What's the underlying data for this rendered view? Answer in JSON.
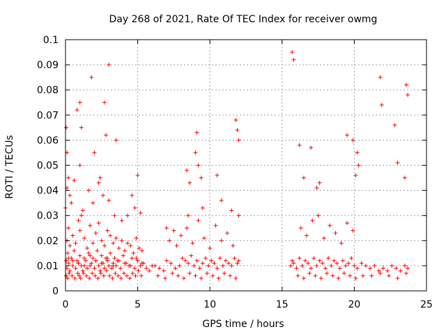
{
  "chart_data": {
    "type": "scatter",
    "title": "Day 268 of 2021, Rate Of TEC Index for receiver owmg",
    "xlabel": "GPS time / hours",
    "ylabel": "ROTI / TECUs",
    "xlim": [
      0,
      25
    ],
    "ylim": [
      0,
      0.1
    ],
    "x_ticks": [
      "0",
      "5",
      "10",
      "15",
      "20",
      "25"
    ],
    "y_ticks": [
      "0",
      "0.01",
      "0.02",
      "0.03",
      "0.04",
      "0.05",
      "0.06",
      "0.07",
      "0.08",
      "0.09",
      "0.1"
    ],
    "grid": true,
    "marker": "+",
    "color": "#ff0000",
    "series": [
      {
        "x": [
          0.05,
          0.1,
          0.15,
          0.2,
          0.3,
          0.4,
          0.5,
          0.6,
          0.7,
          0.8,
          0.9,
          1.0,
          1.1,
          1.2,
          1.3,
          1.4,
          1.5,
          1.6,
          1.7,
          1.8,
          1.9,
          2.0,
          2.1,
          2.2,
          2.3,
          2.4,
          2.5,
          2.6,
          2.7,
          2.8,
          2.9,
          3.0,
          3.1,
          3.2,
          3.3,
          3.4,
          3.5,
          3.6,
          3.8,
          4.0,
          4.2,
          4.4,
          4.6,
          4.8,
          5.0,
          5.2,
          5.4,
          5.6,
          5.8,
          6.0,
          0.1,
          0.2,
          0.3,
          0.5,
          0.7,
          0.9,
          1.0,
          1.1,
          1.3,
          1.5,
          1.7,
          1.9,
          2.1,
          2.3,
          2.5,
          2.7,
          2.9,
          3.1,
          3.3,
          3.5,
          3.7,
          3.9,
          4.1,
          4.3,
          4.5,
          4.7,
          4.9,
          5.1,
          5.3,
          0.05,
          0.15,
          0.25,
          0.45,
          0.65,
          0.85,
          0.95,
          1.05,
          1.25,
          1.45,
          1.65,
          1.85,
          2.05,
          2.25,
          2.45,
          2.65,
          2.85,
          3.05,
          3.25,
          3.45,
          3.65,
          3.85,
          4.05,
          4.25,
          4.45,
          4.65,
          4.85,
          5.05,
          5.25,
          0.05,
          0.1,
          0.2,
          0.4,
          0.8,
          1.0,
          1.1,
          1.8,
          2.0,
          2.4,
          2.7,
          2.8,
          3.0,
          3.5,
          4.6,
          5.0,
          0.0,
          0.1,
          0.3,
          0.6,
          1.0,
          1.2,
          1.6,
          1.9,
          2.3,
          2.6,
          3.0,
          3.4,
          3.9,
          4.3,
          4.8,
          5.2,
          0.2,
          0.5,
          0.9,
          1.3,
          1.7,
          2.1,
          2.5,
          2.9,
          3.3,
          3.7,
          4.1,
          4.5,
          4.9,
          5.3
        ],
        "y": [
          0.012,
          0.009,
          0.015,
          0.011,
          0.008,
          0.013,
          0.01,
          0.016,
          0.009,
          0.012,
          0.011,
          0.014,
          0.01,
          0.008,
          0.013,
          0.012,
          0.009,
          0.015,
          0.01,
          0.011,
          0.013,
          0.009,
          0.012,
          0.016,
          0.01,
          0.008,
          0.014,
          0.011,
          0.009,
          0.013,
          0.012,
          0.01,
          0.015,
          0.009,
          0.011,
          0.013,
          0.01,
          0.012,
          0.009,
          0.014,
          0.011,
          0.01,
          0.013,
          0.009,
          0.012,
          0.01,
          0.011,
          0.009,
          0.008,
          0.01,
          0.02,
          0.025,
          0.018,
          0.022,
          0.019,
          0.028,
          0.024,
          0.03,
          0.021,
          0.017,
          0.026,
          0.019,
          0.023,
          0.027,
          0.02,
          0.018,
          0.024,
          0.022,
          0.019,
          0.021,
          0.017,
          0.02,
          0.016,
          0.019,
          0.018,
          0.015,
          0.021,
          0.017,
          0.016,
          0.006,
          0.005,
          0.007,
          0.006,
          0.005,
          0.007,
          0.006,
          0.005,
          0.007,
          0.006,
          0.005,
          0.007,
          0.006,
          0.005,
          0.007,
          0.006,
          0.008,
          0.006,
          0.005,
          0.007,
          0.006,
          0.005,
          0.007,
          0.006,
          0.005,
          0.007,
          0.006,
          0.008,
          0.006,
          0.065,
          0.055,
          0.045,
          0.035,
          0.072,
          0.075,
          0.065,
          0.085,
          0.055,
          0.045,
          0.075,
          0.062,
          0.09,
          0.06,
          0.038,
          0.046,
          0.033,
          0.041,
          0.038,
          0.044,
          0.05,
          0.032,
          0.04,
          0.035,
          0.043,
          0.038,
          0.036,
          0.03,
          0.028,
          0.03,
          0.033,
          0.031,
          0.013,
          0.012,
          0.011,
          0.01,
          0.014,
          0.012,
          0.011,
          0.013,
          0.01,
          0.012,
          0.011,
          0.01,
          0.013,
          0.011
        ]
      },
      {
        "x": [
          6.2,
          6.5,
          6.8,
          7.0,
          7.3,
          7.6,
          7.9,
          8.1,
          8.3,
          8.5,
          8.7,
          8.9,
          9.1,
          9.3,
          9.5,
          9.7,
          9.9,
          10.1,
          10.3,
          10.5,
          10.7,
          10.9,
          11.1,
          11.3,
          11.5,
          11.7,
          11.9,
          12.0,
          6.4,
          6.9,
          7.4,
          7.8,
          8.2,
          8.6,
          9.0,
          9.4,
          9.8,
          10.2,
          10.6,
          11.0,
          11.4,
          11.8,
          7.2,
          7.7,
          8.0,
          8.4,
          8.8,
          9.2,
          9.6,
          10.0,
          10.4,
          10.8,
          11.2,
          11.6,
          12.0,
          8.4,
          8.6,
          9.0,
          9.1,
          9.2,
          9.4,
          10.5,
          11.8,
          11.9,
          12.0,
          7.0,
          7.5,
          8.5,
          9.5,
          10.8,
          11.5
        ],
        "y": [
          0.01,
          0.009,
          0.008,
          0.012,
          0.011,
          0.009,
          0.01,
          0.013,
          0.012,
          0.011,
          0.014,
          0.01,
          0.012,
          0.009,
          0.011,
          0.013,
          0.01,
          0.012,
          0.011,
          0.009,
          0.013,
          0.01,
          0.012,
          0.011,
          0.01,
          0.013,
          0.011,
          0.012,
          0.006,
          0.005,
          0.007,
          0.006,
          0.005,
          0.007,
          0.006,
          0.005,
          0.007,
          0.006,
          0.005,
          0.007,
          0.006,
          0.005,
          0.02,
          0.018,
          0.022,
          0.025,
          0.019,
          0.028,
          0.021,
          0.017,
          0.026,
          0.02,
          0.023,
          0.018,
          0.03,
          0.048,
          0.043,
          0.055,
          0.063,
          0.05,
          0.045,
          0.046,
          0.068,
          0.064,
          0.06,
          0.025,
          0.024,
          0.03,
          0.033,
          0.036,
          0.032
        ]
      },
      {
        "x": [
          15.6,
          15.7,
          15.8,
          16.0,
          16.2,
          16.4,
          16.6,
          16.8,
          17.0,
          17.2,
          17.4,
          17.6,
          17.8,
          18.0,
          18.2,
          18.4,
          18.6,
          18.8,
          19.0,
          19.2,
          19.4,
          19.6,
          19.8,
          20.0,
          20.2,
          20.5,
          20.8,
          21.1,
          21.4,
          21.7,
          22.0,
          22.3,
          22.6,
          22.9,
          23.2,
          23.5,
          23.7,
          16.1,
          16.5,
          16.9,
          17.3,
          17.7,
          18.1,
          18.5,
          18.9,
          19.3,
          19.7,
          20.1,
          20.6,
          21.2,
          21.8,
          22.4,
          23.0,
          23.6,
          16.3,
          16.7,
          17.1,
          17.5,
          17.9,
          18.3,
          18.7,
          19.1,
          19.5,
          19.9,
          15.7,
          15.8,
          16.2,
          16.5,
          17.0,
          17.4,
          17.6,
          19.5,
          19.9,
          20.2,
          21.8,
          21.9,
          22.8,
          23.0,
          23.6,
          23.7,
          23.5,
          20.3,
          20.1
        ],
        "y": [
          0.01,
          0.012,
          0.011,
          0.009,
          0.013,
          0.01,
          0.012,
          0.011,
          0.009,
          0.013,
          0.01,
          0.012,
          0.011,
          0.009,
          0.013,
          0.01,
          0.012,
          0.011,
          0.009,
          0.012,
          0.01,
          0.011,
          0.013,
          0.01,
          0.009,
          0.011,
          0.01,
          0.009,
          0.01,
          0.008,
          0.009,
          0.008,
          0.01,
          0.009,
          0.008,
          0.01,
          0.009,
          0.006,
          0.005,
          0.007,
          0.006,
          0.005,
          0.007,
          0.006,
          0.005,
          0.007,
          0.006,
          0.005,
          0.006,
          0.006,
          0.007,
          0.006,
          0.005,
          0.007,
          0.025,
          0.022,
          0.028,
          0.03,
          0.021,
          0.026,
          0.023,
          0.019,
          0.027,
          0.024,
          0.095,
          0.092,
          0.058,
          0.045,
          0.057,
          0.041,
          0.043,
          0.062,
          0.06,
          0.055,
          0.085,
          0.074,
          0.066,
          0.051,
          0.082,
          0.078,
          0.045,
          0.05,
          0.046
        ]
      }
    ]
  }
}
